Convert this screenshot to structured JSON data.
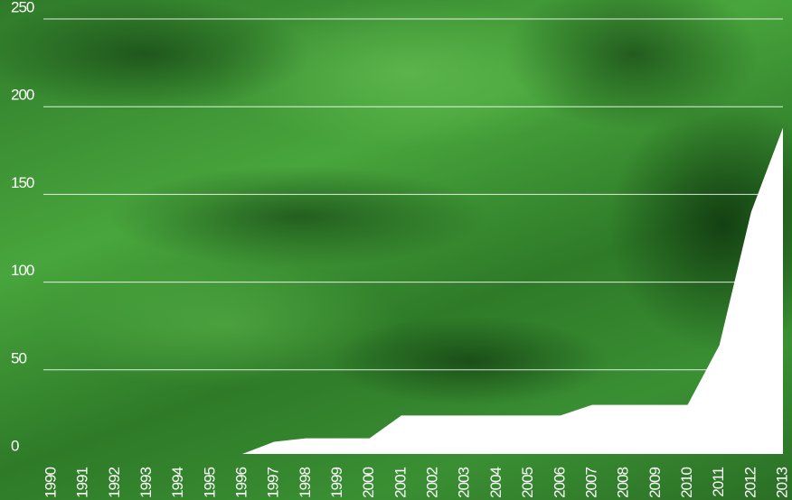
{
  "chart_data": {
    "type": "area",
    "categories": [
      "1990",
      "1991",
      "1992",
      "1993",
      "1994",
      "1995",
      "1996",
      "1997",
      "1998",
      "1999",
      "2000",
      "2001",
      "2002",
      "2003",
      "2004",
      "2005",
      "2006",
      "2007",
      "2008",
      "2009",
      "2010",
      "2011",
      "2012",
      "2013"
    ],
    "series": [
      {
        "color": "#ffffff",
        "values": [
          null,
          null,
          null,
          null,
          null,
          null,
          0,
          9,
          11,
          11,
          11,
          24,
          24,
          24,
          24,
          24,
          24,
          30,
          30,
          30,
          30,
          64,
          140,
          188
        ]
      }
    ],
    "ylim": [
      0,
      250
    ],
    "yticks": [
      0,
      50,
      100,
      150,
      200,
      250
    ],
    "grid": true
  }
}
